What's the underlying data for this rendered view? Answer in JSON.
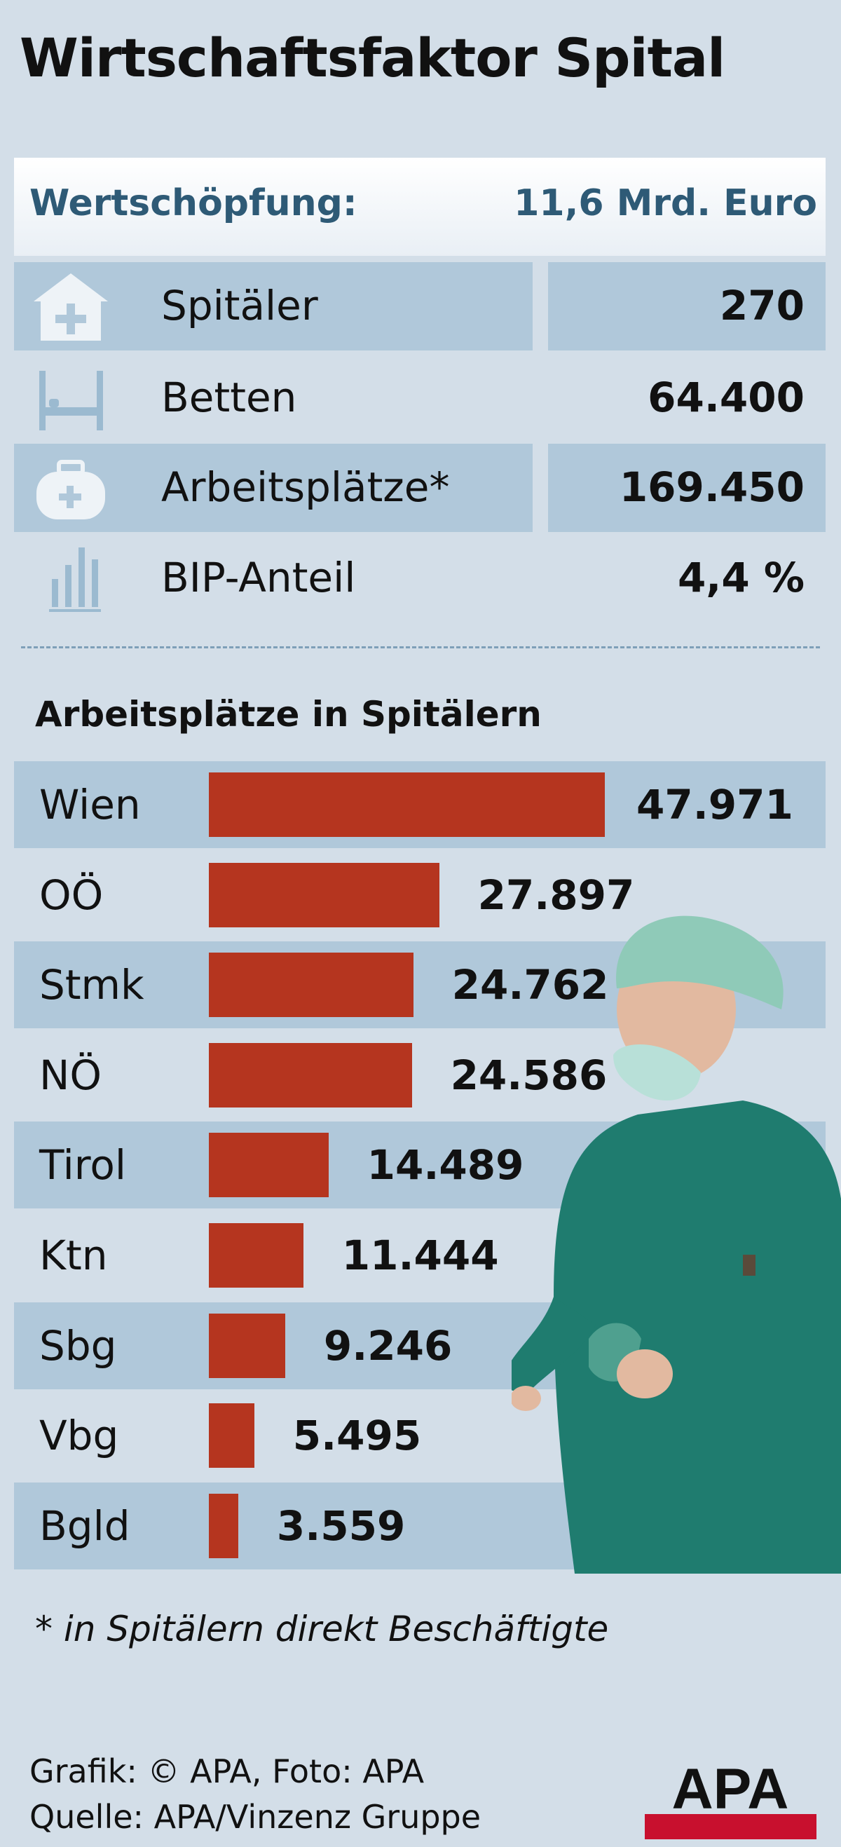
{
  "title": "Wirtschaftsfaktor Spital",
  "wertschoepfung": {
    "label": "Wertschöpfung:",
    "value": "11,6 Mrd. Euro"
  },
  "kpis": [
    {
      "label": "Spitäler",
      "value": "270",
      "icon": "hospital-icon"
    },
    {
      "label": "Betten",
      "value": "64.400",
      "icon": "bed-icon"
    },
    {
      "label": "Arbeitsplätze*",
      "value": "169.450",
      "icon": "medical-bag-icon"
    },
    {
      "label": "BIP-Anteil",
      "value": "4,4 %",
      "icon": "bar-chart-icon"
    }
  ],
  "chart_data": {
    "type": "bar",
    "title": "Arbeitsplätze in Spitälern",
    "categories": [
      "Wien",
      "OÖ",
      "Stmk",
      "NÖ",
      "Tirol",
      "Ktn",
      "Sbg",
      "Vbg",
      "Bgld"
    ],
    "values": [
      47971,
      27897,
      24762,
      24586,
      14489,
      11444,
      9246,
      5495,
      3559
    ],
    "labels": [
      "47.971",
      "27.897",
      "24.762",
      "24.586",
      "14.489",
      "11.444",
      "9.246",
      "5.495",
      "3.559"
    ],
    "orientation": "horizontal",
    "xlabel": "",
    "ylabel": ""
  },
  "footnote": "* in Spitälern direkt Beschäftigte",
  "credit": {
    "line1": "Grafik: © APA, Foto: APA",
    "line2": "Quelle: APA/Vinzenz Gruppe"
  },
  "logo": "APA",
  "colors": {
    "bar": "#b5351f",
    "band": "#b0c8da",
    "background": "#d3dee8",
    "accent": "#2e5a76"
  }
}
